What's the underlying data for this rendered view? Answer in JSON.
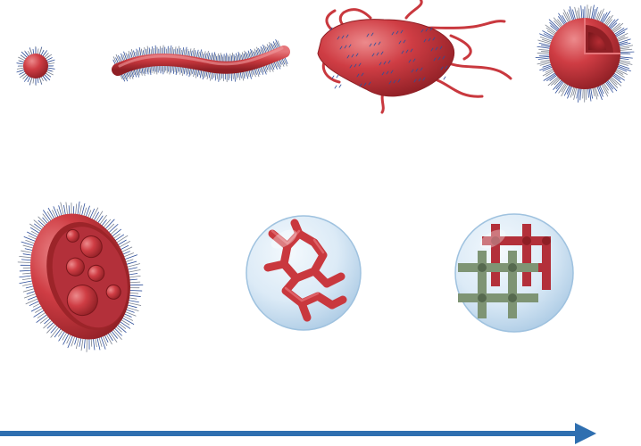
{
  "colors": {
    "background": "#ffffff",
    "polymer_red": "#c9383e",
    "polymer_red_dark": "#8f1f25",
    "polymer_red_light": "#e0666a",
    "corona_blue": "#2f4f9a",
    "corona_grey": "#7b8290",
    "network_green": "#7e9474",
    "network_green_dark": "#56694f",
    "vesicle_blue": "#cfe3f3",
    "vesicle_edge": "#9fc2df",
    "arrow_blue": "#2f6fb0"
  },
  "structures": [
    {
      "name": "spherical-micelle",
      "icon": "spherical-micelle-icon"
    },
    {
      "name": "worm-like-micelle",
      "icon": "worm-micelle-icon"
    },
    {
      "name": "lamellar-sheet-with-tentacles",
      "icon": "sheet-structure-icon"
    },
    {
      "name": "cut-away-vesicle",
      "icon": "vesicle-icon"
    },
    {
      "name": "compartmentalized-vesicle",
      "icon": "multicompartment-vesicle-icon"
    },
    {
      "name": "branched-network-in-sphere",
      "icon": "branched-network-icon"
    },
    {
      "name": "interpenetrating-networks-in-sphere",
      "icon": "dual-network-icon"
    }
  ],
  "arrow": {
    "direction": "right",
    "icon": "arrow-right-icon"
  }
}
